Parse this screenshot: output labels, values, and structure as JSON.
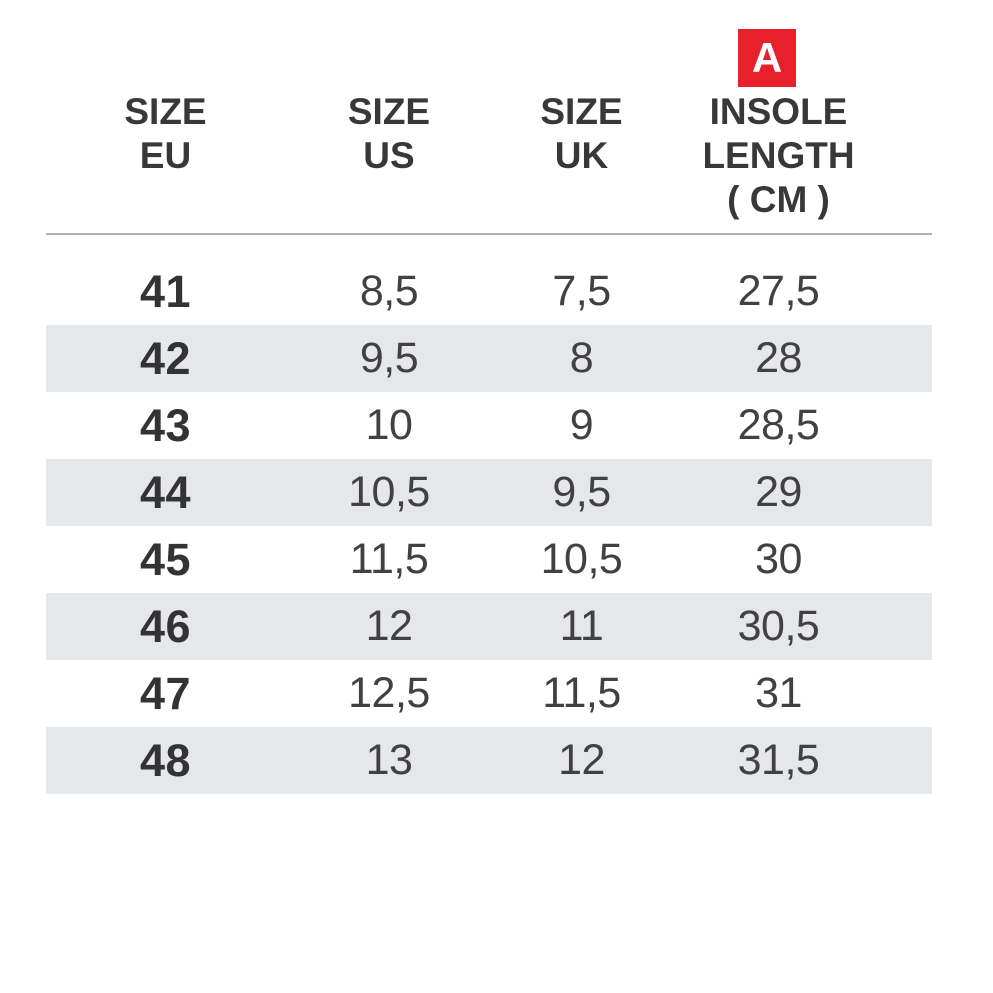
{
  "colors": {
    "accent_red": "#e8202b",
    "badge_text": "#ffffff",
    "row_alt_bg": "#e6e7e8",
    "text_dark": "#38383a",
    "text_data": "#414144",
    "divider": "#aeb2b4",
    "background": "#ffffff"
  },
  "badge": {
    "label": "A"
  },
  "chart_data": {
    "type": "table",
    "legend_position": "none",
    "grid": "alternating-row-stripes",
    "columns": [
      {
        "id": "size_eu",
        "lines": [
          "SIZE",
          "EU"
        ]
      },
      {
        "id": "size_us",
        "lines": [
          "SIZE",
          "US"
        ]
      },
      {
        "id": "size_uk",
        "lines": [
          "SIZE",
          "UK"
        ]
      },
      {
        "id": "insole_length_cm",
        "lines": [
          "INSOLE",
          "LENGTH",
          "( CM )"
        ],
        "badge": "A"
      }
    ],
    "rows": [
      {
        "eu": "41",
        "us": "8,5",
        "uk": "7,5",
        "insole": "27,5"
      },
      {
        "eu": "42",
        "us": "9,5",
        "uk": "8",
        "insole": "28"
      },
      {
        "eu": "43",
        "us": "10",
        "uk": "9",
        "insole": "28,5"
      },
      {
        "eu": "44",
        "us": "10,5",
        "uk": "9,5",
        "insole": "29"
      },
      {
        "eu": "45",
        "us": "11,5",
        "uk": "10,5",
        "insole": "30"
      },
      {
        "eu": "46",
        "us": "12",
        "uk": "11",
        "insole": "30,5"
      },
      {
        "eu": "47",
        "us": "12,5",
        "uk": "11,5",
        "insole": "31"
      },
      {
        "eu": "48",
        "us": "13",
        "uk": "12",
        "insole": "31,5"
      }
    ]
  }
}
